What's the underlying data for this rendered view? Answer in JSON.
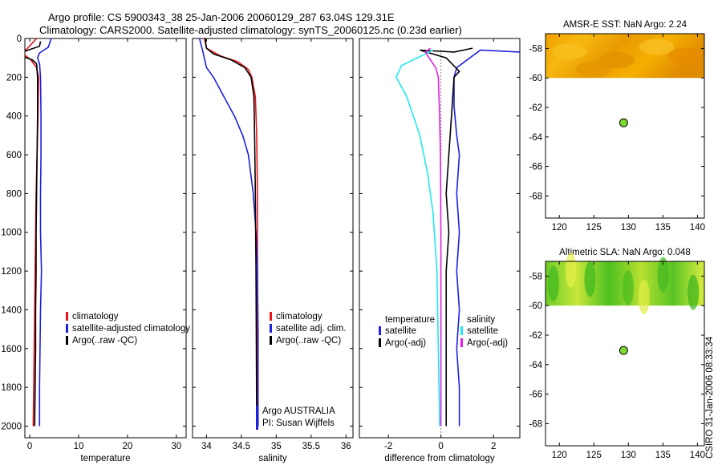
{
  "header": {
    "title_line1": "Argo profile: CS 5900343_38 25-Jan-2006 20060129_287 63.04S 129.31E",
    "title_line2": "Climatology: CARS2000. Satellite-adjusted climatology: synTS_20060125.nc (0.23d earlier)"
  },
  "footer": {
    "vertical_stamp": "CSIRO 31-Jan-2006 08:33:34"
  },
  "colors": {
    "red": "#e8141e",
    "blue": "#1f20dd",
    "black": "#000000",
    "cyan": "#20e8f0",
    "magenta": "#e020e0",
    "sst_map": "#f2a800",
    "sla_map": "#8fd820"
  },
  "chart_data": [
    {
      "type": "line",
      "xlabel": "temperature",
      "xlim": [
        -1,
        32
      ],
      "ylim": [
        2060,
        0
      ],
      "x_ticks": [
        0,
        10,
        20,
        30
      ],
      "y_ticks": [
        0,
        200,
        400,
        600,
        800,
        1000,
        1200,
        1400,
        1600,
        1800,
        2000
      ],
      "legend_placement": "lower-right",
      "series": [
        {
          "name": "climatology",
          "color": "#e8141e",
          "points": [
            [
              1.4,
              0
            ],
            [
              -0.8,
              60
            ],
            [
              -1.3,
              80
            ],
            [
              0.2,
              110
            ],
            [
              1.4,
              150
            ],
            [
              1.8,
              200
            ],
            [
              1.7,
              400
            ],
            [
              1.5,
              600
            ],
            [
              1.3,
              800
            ],
            [
              1.2,
              1000
            ],
            [
              1.1,
              1200
            ],
            [
              1.0,
              1400
            ],
            [
              0.9,
              1600
            ],
            [
              0.8,
              1800
            ],
            [
              0.7,
              2000
            ]
          ]
        },
        {
          "name": "satellite-adjusted climatology",
          "color": "#1f20dd",
          "points": [
            [
              4.4,
              0
            ],
            [
              3.8,
              45
            ],
            [
              2.0,
              75
            ],
            [
              1.6,
              100
            ],
            [
              2.0,
              130
            ],
            [
              2.2,
              200
            ],
            [
              2.3,
              400
            ],
            [
              2.3,
              600
            ],
            [
              2.2,
              800
            ],
            [
              2.2,
              1000
            ],
            [
              2.4,
              1200
            ],
            [
              2.2,
              1400
            ],
            [
              2.1,
              1600
            ],
            [
              2.0,
              1800
            ],
            [
              2.0,
              2000
            ]
          ]
        },
        {
          "name": "Argo(..raw -QC)",
          "color": "#000000",
          "points": [
            [
              2.2,
              15
            ],
            [
              2.0,
              40
            ],
            [
              -1.5,
              70
            ],
            [
              -1.2,
              95
            ],
            [
              0.5,
              110
            ],
            [
              1.4,
              130
            ],
            [
              1.6,
              200
            ],
            [
              1.6,
              400
            ],
            [
              1.5,
              600
            ],
            [
              1.4,
              800
            ],
            [
              1.3,
              1000
            ],
            [
              1.3,
              1200
            ],
            [
              1.2,
              1400
            ],
            [
              1.2,
              1600
            ],
            [
              1.1,
              1800
            ],
            [
              1.0,
              2000
            ]
          ]
        }
      ]
    },
    {
      "type": "line",
      "xlabel": "salinity",
      "xlim": [
        33.8,
        36.1
      ],
      "ylim": [
        2060,
        0
      ],
      "x_ticks": [
        34,
        34.5,
        35,
        35.5,
        36
      ],
      "legend_placement": "lower-right",
      "annotations": [
        "Argo AUSTRALIA",
        "PI: Susan Wijffels"
      ],
      "series": [
        {
          "name": "climatology",
          "color": "#e8141e",
          "points": [
            [
              33.97,
              0
            ],
            [
              34.0,
              50
            ],
            [
              34.2,
              90
            ],
            [
              34.45,
              120
            ],
            [
              34.6,
              160
            ],
            [
              34.65,
              200
            ],
            [
              34.7,
              300
            ],
            [
              34.72,
              500
            ],
            [
              34.73,
              800
            ],
            [
              34.73,
              1200
            ],
            [
              34.73,
              2000
            ]
          ]
        },
        {
          "name": "satellite adj. clim.",
          "color": "#1f20dd",
          "points": [
            [
              33.9,
              0
            ],
            [
              33.95,
              70
            ],
            [
              34.0,
              150
            ],
            [
              34.1,
              200
            ],
            [
              34.25,
              300
            ],
            [
              34.4,
              400
            ],
            [
              34.52,
              500
            ],
            [
              34.6,
              600
            ],
            [
              34.67,
              800
            ],
            [
              34.71,
              1000
            ],
            [
              34.73,
              1200
            ],
            [
              34.74,
              1500
            ],
            [
              34.74,
              2000
            ]
          ]
        },
        {
          "name": "Argo(..raw -QC)",
          "color": "#000000",
          "points": [
            [
              33.98,
              0
            ],
            [
              34.0,
              50
            ],
            [
              34.1,
              80
            ],
            [
              34.35,
              110
            ],
            [
              34.55,
              150
            ],
            [
              34.64,
              200
            ],
            [
              34.68,
              300
            ],
            [
              34.69,
              500
            ],
            [
              34.7,
              800
            ],
            [
              34.71,
              1200
            ],
            [
              34.72,
              2000
            ]
          ]
        }
      ]
    },
    {
      "type": "line",
      "xlabel": "difference from climatology",
      "xlim": [
        -3.1,
        3.0
      ],
      "ylim": [
        2060,
        0
      ],
      "x_ticks": [
        -2,
        0,
        2
      ],
      "legend_placement": "lower-center",
      "legend_groups": {
        "left_title": "temperature",
        "right_title": "salinity"
      },
      "series": [
        {
          "name": "temperature satellite",
          "group": "temperature",
          "color": "#1f20dd",
          "points": [
            [
              3.0,
              70
            ],
            [
              1.5,
              60
            ],
            [
              0.6,
              150
            ],
            [
              0.5,
              200
            ],
            [
              0.5,
              350
            ],
            [
              0.6,
              500
            ],
            [
              0.7,
              600
            ],
            [
              0.6,
              800
            ],
            [
              0.7,
              1000
            ],
            [
              0.6,
              1200
            ],
            [
              0.7,
              1400
            ],
            [
              0.6,
              1600
            ],
            [
              0.7,
              1800
            ],
            [
              0.7,
              2000
            ]
          ]
        },
        {
          "name": "temperature Argo(-adj)",
          "group": "temperature",
          "color": "#000000",
          "points": [
            [
              1.2,
              50
            ],
            [
              0.5,
              70
            ],
            [
              -0.8,
              60
            ],
            [
              0.2,
              100
            ],
            [
              0.7,
              170
            ],
            [
              0.5,
              200
            ],
            [
              0.4,
              400
            ],
            [
              0.3,
              600
            ],
            [
              0.2,
              800
            ],
            [
              0.3,
              1000
            ],
            [
              0.2,
              1200
            ],
            [
              0.2,
              1600
            ],
            [
              0.2,
              2000
            ]
          ]
        },
        {
          "name": "salinity satellite",
          "group": "salinity",
          "color": "#20e8f0",
          "points": [
            [
              -0.3,
              60
            ],
            [
              -1.5,
              140
            ],
            [
              -1.7,
              200
            ],
            [
              -1.3,
              300
            ],
            [
              -0.8,
              500
            ],
            [
              -0.5,
              700
            ],
            [
              -0.3,
              900
            ],
            [
              -0.15,
              1200
            ],
            [
              -0.1,
              1600
            ],
            [
              -0.05,
              2000
            ]
          ]
        },
        {
          "name": "salinity Argo(-adj)",
          "group": "salinity",
          "color": "#e020e0",
          "points": [
            [
              -0.4,
              50
            ],
            [
              -0.6,
              70
            ],
            [
              -0.2,
              150
            ],
            [
              -0.1,
              200
            ],
            [
              -0.05,
              400
            ],
            [
              -0.02,
              600
            ],
            [
              0,
              1000
            ],
            [
              0,
              2000
            ]
          ]
        }
      ]
    },
    {
      "type": "heatmap",
      "title": "AMSR-E SST: NaN Argo: 2.24",
      "xlim": [
        118,
        141
      ],
      "ylim": [
        -69.5,
        -57
      ],
      "x_ticks": [
        120,
        125,
        130,
        135,
        140
      ],
      "y_ticks": [
        -58,
        -60,
        -62,
        -64,
        -66,
        -68
      ],
      "data_edge_lat": -60,
      "marker": {
        "lon": 129.31,
        "lat": -63.04
      }
    },
    {
      "type": "heatmap",
      "title": "Altimetric SLA: NaN Argo: 0.048",
      "xlim": [
        118,
        141
      ],
      "ylim": [
        -69.5,
        -57
      ],
      "x_ticks": [
        120,
        125,
        130,
        135,
        140
      ],
      "y_ticks": [
        -58,
        -60,
        -62,
        -64,
        -66,
        -68
      ],
      "data_edge_lat": -60,
      "marker": {
        "lon": 129.31,
        "lat": -63.04
      }
    }
  ]
}
